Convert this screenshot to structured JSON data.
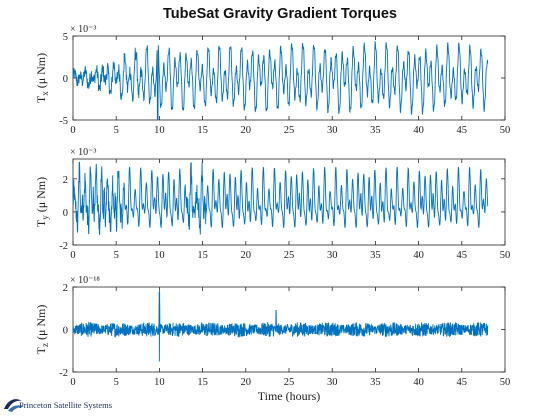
{
  "title": "TubeSat Gravity Gradient Torques",
  "logo_text": "Princeton Satellite Systems",
  "chart_data": [
    {
      "type": "line",
      "ylabel": "T_x (μ Nm)",
      "ylabel_main": "T",
      "ylabel_sub": "x",
      "ylabel_rest": " (μ Nm)",
      "exponent": "× 10⁻³",
      "xlim": [
        0,
        50
      ],
      "ylim": [
        -5,
        5
      ],
      "yticks": [
        -5,
        0,
        5
      ],
      "xticks": [
        0,
        5,
        10,
        15,
        20,
        25,
        30,
        35,
        40,
        45,
        50
      ],
      "xlabel": "",
      "line_color": "#0072bd",
      "series": [
        {
          "x_end": 48,
          "envelope": [
            [
              0,
              0.5
            ],
            [
              3,
              1.5
            ],
            [
              5,
              2.5
            ],
            [
              7,
              3.5
            ],
            [
              9,
              4.5
            ],
            [
              12,
              4.5
            ],
            [
              15,
              4.2
            ],
            [
              20,
              4.5
            ],
            [
              30,
              4.6
            ],
            [
              40,
              4.6
            ],
            [
              48,
              4.2
            ]
          ],
          "min_spike": [
            9.8,
            -5.0
          ]
        }
      ]
    },
    {
      "type": "line",
      "ylabel": "T_y (μ Nm)",
      "ylabel_main": "T",
      "ylabel_sub": "y",
      "ylabel_rest": " (μ Nm)",
      "exponent": "× 10⁻³",
      "xlim": [
        0,
        50
      ],
      "ylim": [
        -2,
        3.2
      ],
      "yticks": [
        -2,
        0,
        2
      ],
      "xticks": [
        0,
        5,
        10,
        15,
        20,
        25,
        30,
        35,
        40,
        45,
        50
      ],
      "xlabel": "",
      "line_color": "#0072bd",
      "series": [
        {
          "x_end": 48,
          "upper": 3.0,
          "lower": -1.8
        }
      ]
    },
    {
      "type": "line",
      "ylabel": "T_z (μ Nm)",
      "ylabel_main": "T",
      "ylabel_sub": "z",
      "ylabel_rest": " (μ Nm)",
      "exponent": "× 10⁻¹⁸",
      "xlim": [
        0,
        50
      ],
      "ylim": [
        -2,
        2
      ],
      "yticks": [
        -2,
        0,
        2
      ],
      "xticks": [
        0,
        5,
        10,
        15,
        20,
        25,
        30,
        35,
        40,
        45,
        50
      ],
      "xlabel": "Time (hours)",
      "line_color": "#0072bd",
      "series": [
        {
          "x_end": 48,
          "noise": 0.35,
          "spike": [
            10.0,
            1.8
          ]
        }
      ]
    }
  ]
}
